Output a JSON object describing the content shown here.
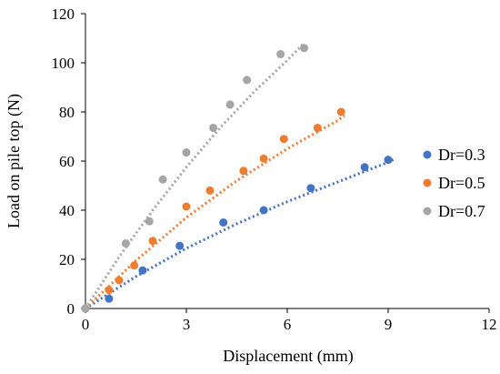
{
  "chart_data": {
    "type": "scatter",
    "title": "",
    "xlabel": "Displacement (mm)",
    "ylabel": "Load on pile top (N)",
    "xlim": [
      0,
      12
    ],
    "ylim": [
      0,
      120
    ],
    "x_ticks": [
      "0",
      "3",
      "6",
      "9",
      "12"
    ],
    "y_ticks": [
      "0",
      "20",
      "40",
      "60",
      "80",
      "100",
      "120"
    ],
    "grid": false,
    "legend_position": "right",
    "trendlines": "dotted",
    "series": [
      {
        "name": "Dr=0.3",
        "color": "#4472C4",
        "points": [
          [
            0,
            0
          ],
          [
            0.7,
            4
          ],
          [
            1.7,
            15.5
          ],
          [
            2.8,
            25.5
          ],
          [
            4.1,
            35
          ],
          [
            5.3,
            40
          ],
          [
            6.7,
            49
          ],
          [
            8.3,
            57.5
          ],
          [
            9.0,
            60.5
          ]
        ],
        "trend": [
          [
            0,
            0
          ],
          [
            1.5,
            13
          ],
          [
            3,
            24.5
          ],
          [
            4.5,
            34.5
          ],
          [
            6,
            43.5
          ],
          [
            7.5,
            51.5
          ],
          [
            9,
            59.5
          ],
          [
            9.2,
            61
          ]
        ]
      },
      {
        "name": "Dr=0.5",
        "color": "#ED7D31",
        "points": [
          [
            0,
            0
          ],
          [
            0.7,
            7.5
          ],
          [
            1.0,
            11.5
          ],
          [
            1.45,
            17.5
          ],
          [
            2.0,
            27.5
          ],
          [
            3.0,
            41.5
          ],
          [
            3.7,
            48
          ],
          [
            4.7,
            56
          ],
          [
            5.3,
            61
          ],
          [
            5.9,
            69
          ],
          [
            6.9,
            73.5
          ],
          [
            7.6,
            80
          ]
        ],
        "trend": [
          [
            0,
            0
          ],
          [
            1.5,
            19.5
          ],
          [
            3,
            37
          ],
          [
            4.5,
            52
          ],
          [
            6,
            65
          ],
          [
            7.5,
            76.5
          ],
          [
            7.7,
            78.5
          ]
        ]
      },
      {
        "name": "Dr=0.7",
        "color": "#A5A5A5",
        "points": [
          [
            0,
            0
          ],
          [
            1.2,
            26.5
          ],
          [
            1.9,
            35.5
          ],
          [
            2.3,
            52.5
          ],
          [
            3.0,
            63.5
          ],
          [
            3.8,
            73.5
          ],
          [
            4.3,
            83
          ],
          [
            4.8,
            93
          ],
          [
            5.8,
            103.5
          ],
          [
            6.5,
            106
          ]
        ],
        "trend": [
          [
            0,
            0
          ],
          [
            1,
            21
          ],
          [
            2,
            40
          ],
          [
            3,
            57.5
          ],
          [
            4,
            73.5
          ],
          [
            5,
            88
          ],
          [
            6,
            101
          ],
          [
            6.5,
            108
          ]
        ]
      }
    ]
  }
}
